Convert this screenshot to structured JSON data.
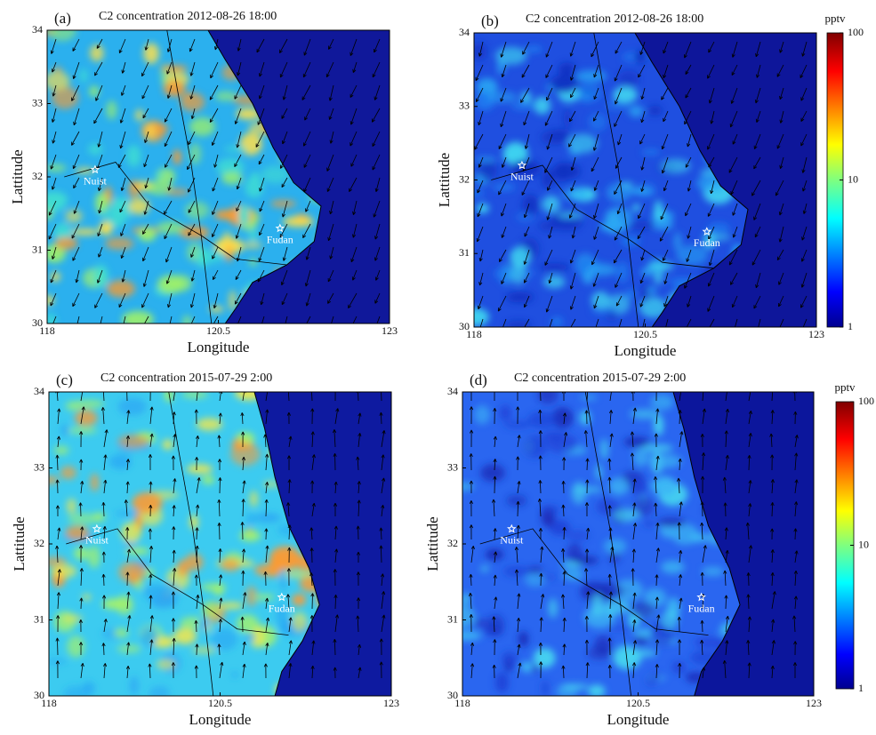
{
  "panels": [
    {
      "label": "(a)",
      "title": "C2 concentration 2012-08-26 18:00",
      "x_label": "Longitude",
      "y_label": "Lattitude",
      "xlim": [
        118,
        123
      ],
      "ylim": [
        30,
        34
      ],
      "xticks": [
        118,
        120.5,
        123
      ],
      "yticks": [
        30,
        31,
        32,
        33,
        34
      ],
      "sites": [
        {
          "name": "Nuist",
          "lon": 118.7,
          "lat": 32.1
        },
        {
          "name": "Fudan",
          "lon": 121.4,
          "lat": 31.3
        }
      ]
    },
    {
      "label": "(b)",
      "title": "C2 concentration 2012-08-26 18:00",
      "x_label": "Longitude",
      "y_label": "Lattitude",
      "xlim": [
        118,
        123
      ],
      "ylim": [
        30,
        34
      ],
      "xticks": [
        118,
        120.5,
        123
      ],
      "yticks": [
        30,
        31,
        32,
        33,
        34
      ],
      "sites": [
        {
          "name": "Nuist",
          "lon": 118.7,
          "lat": 32.2
        },
        {
          "name": "Fudan",
          "lon": 121.4,
          "lat": 31.3
        }
      ],
      "colorbar": {
        "unit": "pptv",
        "scale": "log",
        "lim": [
          1,
          100
        ],
        "ticks": [
          1,
          10,
          100
        ]
      }
    },
    {
      "label": "(c)",
      "title": "C2 concentration 2015-07-29 2:00",
      "x_label": "Longitude",
      "y_label": "Lattitude",
      "xlim": [
        118,
        123
      ],
      "ylim": [
        30,
        34
      ],
      "xticks": [
        118,
        120.5,
        123
      ],
      "yticks": [
        30,
        31,
        32,
        33,
        34
      ],
      "sites": [
        {
          "name": "Nuist",
          "lon": 118.7,
          "lat": 32.2
        },
        {
          "name": "Fudan",
          "lon": 121.4,
          "lat": 31.3
        }
      ]
    },
    {
      "label": "(d)",
      "title": "C2 concentration 2015-07-29 2:00",
      "x_label": "Longitude",
      "y_label": "Lattitude",
      "xlim": [
        118,
        123
      ],
      "ylim": [
        30,
        34
      ],
      "xticks": [
        118,
        120.5,
        123
      ],
      "yticks": [
        30,
        31,
        32,
        33,
        34
      ],
      "sites": [
        {
          "name": "Nuist",
          "lon": 118.7,
          "lat": 32.2
        },
        {
          "name": "Fudan",
          "lon": 121.4,
          "lat": 31.3
        }
      ],
      "colorbar": {
        "unit": "pptv",
        "scale": "log",
        "lim": [
          1,
          100
        ],
        "ticks": [
          1,
          10,
          100
        ]
      }
    }
  ]
}
